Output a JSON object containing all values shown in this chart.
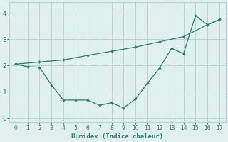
{
  "xlabel": "Humidex (Indice chaleur)",
  "xlim": [
    -0.5,
    17.5
  ],
  "ylim": [
    -0.15,
    4.4
  ],
  "xticks": [
    0,
    1,
    2,
    3,
    4,
    5,
    6,
    7,
    8,
    9,
    10,
    11,
    12,
    13,
    14,
    15,
    16,
    17
  ],
  "yticks": [
    0,
    1,
    2,
    3,
    4
  ],
  "line1_x": [
    0,
    1,
    2,
    3,
    4,
    5,
    6,
    7,
    8,
    9,
    10,
    11,
    12,
    13,
    14,
    15,
    16,
    17
  ],
  "line1_y": [
    2.05,
    1.95,
    1.93,
    1.25,
    0.68,
    0.68,
    0.68,
    0.48,
    0.58,
    0.38,
    0.72,
    1.33,
    1.9,
    2.65,
    2.45,
    3.9,
    3.55,
    3.75
  ],
  "line2_x": [
    0,
    2,
    4,
    6,
    8,
    10,
    12,
    14,
    16,
    17
  ],
  "line2_y": [
    2.05,
    2.13,
    2.21,
    2.38,
    2.54,
    2.7,
    2.9,
    3.1,
    3.55,
    3.75
  ],
  "line_color": "#2a7d6a",
  "bg_color": "#dff0ed",
  "grid_color": "#b5d5d0",
  "font_color": "#2a7d6a"
}
